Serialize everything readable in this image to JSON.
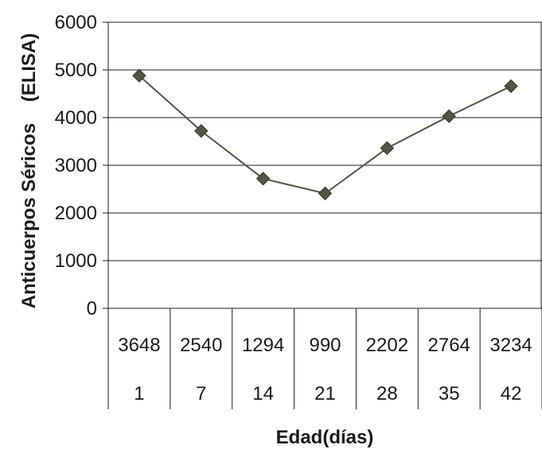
{
  "chart_data": {
    "type": "line",
    "title": "",
    "xlabel": "Edad(días)",
    "ylabel": "Anticuerpos Séricos    (ELISA)",
    "ylim": [
      0,
      6000
    ],
    "yticks": [
      "0",
      "1000",
      "2000",
      "3000",
      "4000",
      "5000",
      "6000"
    ],
    "grid": true,
    "legend": "none",
    "categories": [
      "1",
      "7",
      "14",
      "21",
      "28",
      "35",
      "42"
    ],
    "table_row": [
      "3648",
      "2540",
      "1294",
      "990",
      "2202",
      "2764",
      "3234"
    ],
    "series": [
      {
        "values": [
          4880,
          3720,
          2720,
          2410,
          3360,
          4030,
          4660
        ]
      }
    ],
    "colors": {
      "line": "#555547",
      "marker": "#555547",
      "grid": "#1a1a1a"
    }
  }
}
